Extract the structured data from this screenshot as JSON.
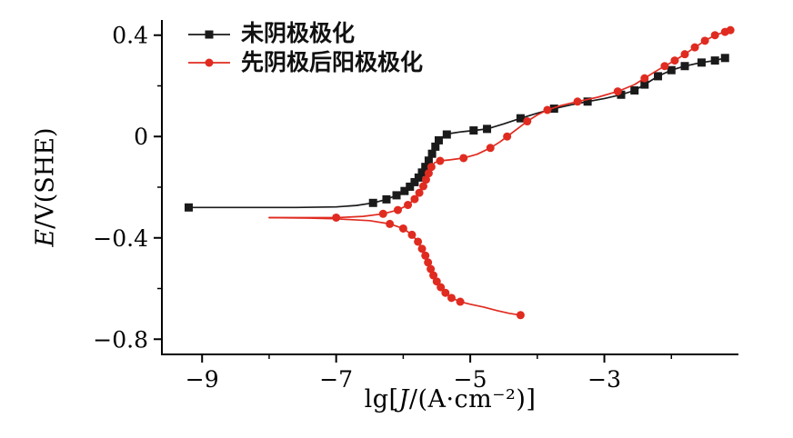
{
  "figure": {
    "background": "#ffffff",
    "axis_color": "#000000"
  },
  "chart_data": {
    "type": "line",
    "title": "",
    "xlabel": {
      "pre": "lg[",
      "var": "J",
      "post": "/(A·cm⁻²)]"
    },
    "ylabel": {
      "var": "E",
      "post": "/V(SHE)"
    },
    "xlim": [
      -9.6,
      -1.0
    ],
    "ylim": [
      -0.86,
      0.46
    ],
    "grid": false,
    "legend_position": "top-left",
    "x_ticks": [
      {
        "v": -9,
        "label": "−9"
      },
      {
        "v": -7,
        "label": "−7"
      },
      {
        "v": -5,
        "label": "−5"
      },
      {
        "v": -3,
        "label": "−3"
      }
    ],
    "x_minor_ticks": [
      -8,
      -6,
      -4,
      -2
    ],
    "y_ticks": [
      {
        "v": 0.4,
        "label": "0.4"
      },
      {
        "v": 0,
        "label": "0"
      },
      {
        "v": -0.4,
        "label": "−0.4"
      },
      {
        "v": -0.8,
        "label": "−0.8"
      }
    ],
    "y_minor_ticks": [
      0.2,
      -0.2,
      -0.6
    ],
    "series": [
      {
        "name": "未阴极极化",
        "color": "#1a1a1a",
        "marker": "square",
        "segments": [
          [
            [
              -9.2,
              -0.28
            ],
            [
              -8.4,
              -0.28
            ],
            [
              -7.6,
              -0.28
            ],
            [
              -7.0,
              -0.278
            ],
            [
              -6.7,
              -0.272
            ],
            [
              -6.45,
              -0.262
            ],
            [
              -6.25,
              -0.248
            ],
            [
              -6.1,
              -0.232
            ],
            [
              -5.98,
              -0.215
            ],
            [
              -5.9,
              -0.198
            ],
            [
              -5.83,
              -0.18
            ],
            [
              -5.77,
              -0.162
            ],
            [
              -5.72,
              -0.142
            ],
            [
              -5.67,
              -0.12
            ],
            [
              -5.62,
              -0.095
            ],
            [
              -5.57,
              -0.068
            ],
            [
              -5.52,
              -0.04
            ],
            [
              -5.47,
              -0.015
            ],
            [
              -5.4,
              0.0
            ],
            [
              -5.3,
              0.012
            ],
            [
              -5.15,
              0.018
            ],
            [
              -4.95,
              0.024
            ],
            [
              -4.75,
              0.03
            ],
            [
              -4.5,
              0.05
            ],
            [
              -4.25,
              0.072
            ],
            [
              -4.0,
              0.092
            ],
            [
              -3.75,
              0.11
            ],
            [
              -3.5,
              0.125
            ],
            [
              -3.25,
              0.138
            ],
            [
              -3.0,
              0.15
            ],
            [
              -2.75,
              0.165
            ],
            [
              -2.55,
              0.182
            ],
            [
              -2.4,
              0.205
            ],
            [
              -2.2,
              0.238
            ],
            [
              -2.0,
              0.262
            ],
            [
              -1.8,
              0.278
            ],
            [
              -1.55,
              0.292
            ],
            [
              -1.35,
              0.3
            ],
            [
              -1.2,
              0.31
            ]
          ]
        ],
        "marker_points": [
          [
            -9.2,
            -0.28
          ],
          [
            -6.45,
            -0.262
          ],
          [
            -6.25,
            -0.248
          ],
          [
            -6.1,
            -0.232
          ],
          [
            -5.98,
            -0.215
          ],
          [
            -5.9,
            -0.198
          ],
          [
            -5.83,
            -0.18
          ],
          [
            -5.77,
            -0.162
          ],
          [
            -5.72,
            -0.142
          ],
          [
            -5.67,
            -0.12
          ],
          [
            -5.62,
            -0.095
          ],
          [
            -5.57,
            -0.068
          ],
          [
            -5.52,
            -0.04
          ],
          [
            -5.47,
            -0.015
          ],
          [
            -5.35,
            0.008
          ],
          [
            -4.95,
            0.024
          ],
          [
            -4.75,
            0.03
          ],
          [
            -4.25,
            0.072
          ],
          [
            -3.75,
            0.11
          ],
          [
            -3.25,
            0.138
          ],
          [
            -2.75,
            0.165
          ],
          [
            -2.55,
            0.182
          ],
          [
            -2.4,
            0.205
          ],
          [
            -2.2,
            0.238
          ],
          [
            -2.0,
            0.262
          ],
          [
            -1.8,
            0.278
          ],
          [
            -1.55,
            0.292
          ],
          [
            -1.35,
            0.3
          ],
          [
            -1.2,
            0.31
          ]
        ]
      },
      {
        "name": "先阴极后阳极极化",
        "color": "#e02b20",
        "marker": "circle",
        "segments": [
          [
            [
              -8.0,
              -0.32
            ],
            [
              -7.5,
              -0.32
            ],
            [
              -7.0,
              -0.32
            ],
            [
              -6.6,
              -0.315
            ],
            [
              -6.3,
              -0.305
            ],
            [
              -6.08,
              -0.29
            ],
            [
              -5.93,
              -0.27
            ],
            [
              -5.83,
              -0.247
            ],
            [
              -5.76,
              -0.222
            ],
            [
              -5.7,
              -0.196
            ],
            [
              -5.66,
              -0.17
            ],
            [
              -5.62,
              -0.145
            ],
            [
              -5.58,
              -0.12
            ],
            [
              -5.53,
              -0.103
            ],
            [
              -5.45,
              -0.096
            ],
            [
              -5.3,
              -0.092
            ],
            [
              -5.1,
              -0.085
            ],
            [
              -4.9,
              -0.07
            ],
            [
              -4.7,
              -0.045
            ],
            [
              -4.55,
              -0.02
            ],
            [
              -4.45,
              0.0
            ],
            [
              -4.3,
              0.03
            ],
            [
              -4.15,
              0.06
            ],
            [
              -4.0,
              0.085
            ],
            [
              -3.85,
              0.105
            ],
            [
              -3.65,
              0.122
            ],
            [
              -3.4,
              0.138
            ],
            [
              -3.1,
              0.155
            ],
            [
              -2.8,
              0.178
            ],
            [
              -2.55,
              0.205
            ],
            [
              -2.4,
              0.23
            ],
            [
              -2.25,
              0.255
            ],
            [
              -2.1,
              0.278
            ],
            [
              -1.95,
              0.3
            ],
            [
              -1.8,
              0.325
            ],
            [
              -1.65,
              0.352
            ],
            [
              -1.5,
              0.378
            ],
            [
              -1.35,
              0.4
            ],
            [
              -1.2,
              0.413
            ],
            [
              -1.12,
              0.42
            ]
          ],
          [
            [
              -8.0,
              -0.32
            ],
            [
              -7.4,
              -0.322
            ],
            [
              -7.0,
              -0.325
            ],
            [
              -6.5,
              -0.332
            ],
            [
              -6.2,
              -0.345
            ],
            [
              -6.0,
              -0.363
            ],
            [
              -5.87,
              -0.388
            ],
            [
              -5.78,
              -0.415
            ],
            [
              -5.72,
              -0.443
            ],
            [
              -5.67,
              -0.47
            ],
            [
              -5.63,
              -0.497
            ],
            [
              -5.59,
              -0.523
            ],
            [
              -5.55,
              -0.548
            ],
            [
              -5.5,
              -0.572
            ],
            [
              -5.44,
              -0.595
            ],
            [
              -5.37,
              -0.617
            ],
            [
              -5.28,
              -0.637
            ],
            [
              -5.15,
              -0.652
            ],
            [
              -5.0,
              -0.662
            ],
            [
              -4.8,
              -0.673
            ],
            [
              -4.6,
              -0.687
            ],
            [
              -4.42,
              -0.698
            ],
            [
              -4.25,
              -0.705
            ]
          ]
        ],
        "marker_points": [
          [
            -7.0,
            -0.32
          ],
          [
            -6.3,
            -0.305
          ],
          [
            -6.08,
            -0.29
          ],
          [
            -5.93,
            -0.27
          ],
          [
            -5.83,
            -0.247
          ],
          [
            -5.76,
            -0.222
          ],
          [
            -5.7,
            -0.196
          ],
          [
            -5.66,
            -0.17
          ],
          [
            -5.62,
            -0.145
          ],
          [
            -5.58,
            -0.12
          ],
          [
            -5.45,
            -0.096
          ],
          [
            -5.1,
            -0.085
          ],
          [
            -4.7,
            -0.045
          ],
          [
            -4.45,
            0.0
          ],
          [
            -4.15,
            0.06
          ],
          [
            -3.85,
            0.105
          ],
          [
            -3.4,
            0.138
          ],
          [
            -2.8,
            0.178
          ],
          [
            -2.4,
            0.23
          ],
          [
            -2.1,
            0.278
          ],
          [
            -1.95,
            0.3
          ],
          [
            -1.8,
            0.325
          ],
          [
            -1.65,
            0.352
          ],
          [
            -1.5,
            0.378
          ],
          [
            -1.35,
            0.4
          ],
          [
            -1.2,
            0.413
          ],
          [
            -1.12,
            0.42
          ],
          [
            -6.2,
            -0.345
          ],
          [
            -6.0,
            -0.363
          ],
          [
            -5.87,
            -0.388
          ],
          [
            -5.78,
            -0.415
          ],
          [
            -5.72,
            -0.443
          ],
          [
            -5.67,
            -0.47
          ],
          [
            -5.63,
            -0.497
          ],
          [
            -5.59,
            -0.523
          ],
          [
            -5.55,
            -0.548
          ],
          [
            -5.5,
            -0.572
          ],
          [
            -5.44,
            -0.595
          ],
          [
            -5.37,
            -0.617
          ],
          [
            -5.28,
            -0.637
          ],
          [
            -5.15,
            -0.652
          ],
          [
            -4.25,
            -0.705
          ]
        ]
      }
    ]
  }
}
